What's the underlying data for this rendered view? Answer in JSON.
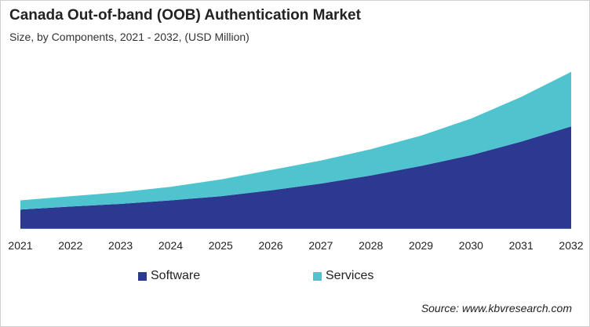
{
  "chart_data": {
    "type": "area",
    "stacked": true,
    "title": "Canada Out-of-band (OOB) Authentication Market",
    "subtitle": "Size, by Components, 2021 - 2032, (USD Million)",
    "x": [
      "2021",
      "2022",
      "2023",
      "2024",
      "2025",
      "2026",
      "2027",
      "2028",
      "2029",
      "2030",
      "2031",
      "2032"
    ],
    "series": [
      {
        "name": "Software",
        "color": "#2B3990",
        "values": [
          7.1,
          8.2,
          9.2,
          10.5,
          12.0,
          14.2,
          16.7,
          19.7,
          23.2,
          27.2,
          32.2,
          37.8
        ]
      },
      {
        "name": "Services",
        "color": "#4FC4CF",
        "values": [
          3.4,
          3.8,
          4.3,
          5.0,
          6.2,
          7.5,
          8.5,
          9.7,
          11.2,
          13.5,
          16.5,
          20.2
        ]
      }
    ],
    "y_axis_shown": false,
    "grid": false,
    "legend": "bottom",
    "source": "Source: www.kbvresearch.com"
  }
}
